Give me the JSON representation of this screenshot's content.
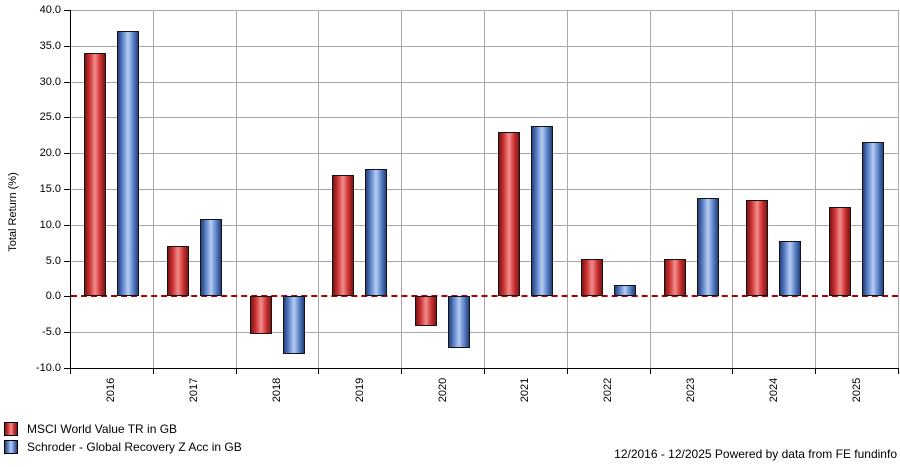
{
  "chart_data": {
    "type": "bar",
    "title": "",
    "xlabel": "",
    "ylabel": "Total Return (%)",
    "ylim": [
      -10,
      40
    ],
    "y_tick_step": 5,
    "y_tick_labels": [
      "40.0",
      "35.0",
      "30.0",
      "25.0",
      "20.0",
      "15.0",
      "10.0",
      "5.0",
      "0.0",
      "-5.0",
      "-10.0"
    ],
    "categories": [
      "2016",
      "2017",
      "2018",
      "2019",
      "2020",
      "2021",
      "2022",
      "2023",
      "2024",
      "2025"
    ],
    "series": [
      {
        "id": "msci-world-value",
        "name": "MSCI World Value TR in GB",
        "color": "#cc3333",
        "values": [
          34.0,
          7.0,
          -5.2,
          17.0,
          -4.1,
          23.0,
          5.2,
          5.2,
          13.4,
          12.5
        ]
      },
      {
        "id": "schroder-global-recovery",
        "name": "Schroder - Global Recovery Z Acc in GB",
        "color": "#5b82c8",
        "values": [
          37.0,
          10.8,
          -8.0,
          17.8,
          -7.2,
          23.8,
          1.6,
          13.7,
          7.7,
          21.5
        ]
      }
    ],
    "grid": true,
    "legend_position": "bottom-left",
    "zero_line": {
      "style": "dashed",
      "color": "#aa0000"
    }
  },
  "footer": {
    "text": "12/2016 - 12/2025 Powered by data from FE fundinfo"
  }
}
